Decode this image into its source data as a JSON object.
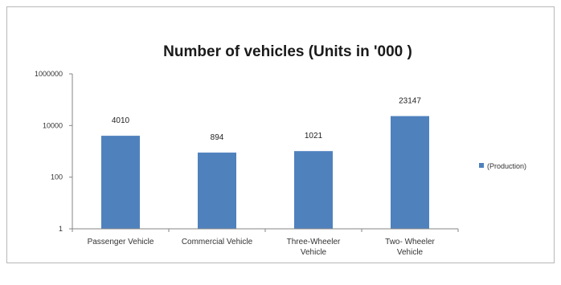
{
  "chart_data": {
    "type": "bar",
    "title": "Number of vehicles (Units in '000 )",
    "categories": [
      [
        "Passenger Vehicle"
      ],
      [
        "Commercial Vehicle"
      ],
      [
        "Three-Wheeler",
        "Vehicle"
      ],
      [
        "Two- Wheeler",
        "Vehicle"
      ]
    ],
    "series": [
      {
        "name": "(Production)",
        "values": [
          4010,
          894,
          1021,
          23147
        ],
        "labels": [
          "4010",
          "894",
          "1021",
          "23147"
        ],
        "color": "#4f81bd"
      }
    ],
    "yscale": "log",
    "ylim": [
      1,
      1000000
    ],
    "yticks": [
      "1",
      "100",
      "10000",
      "1000000"
    ],
    "legend_position": "right",
    "grid": false
  }
}
